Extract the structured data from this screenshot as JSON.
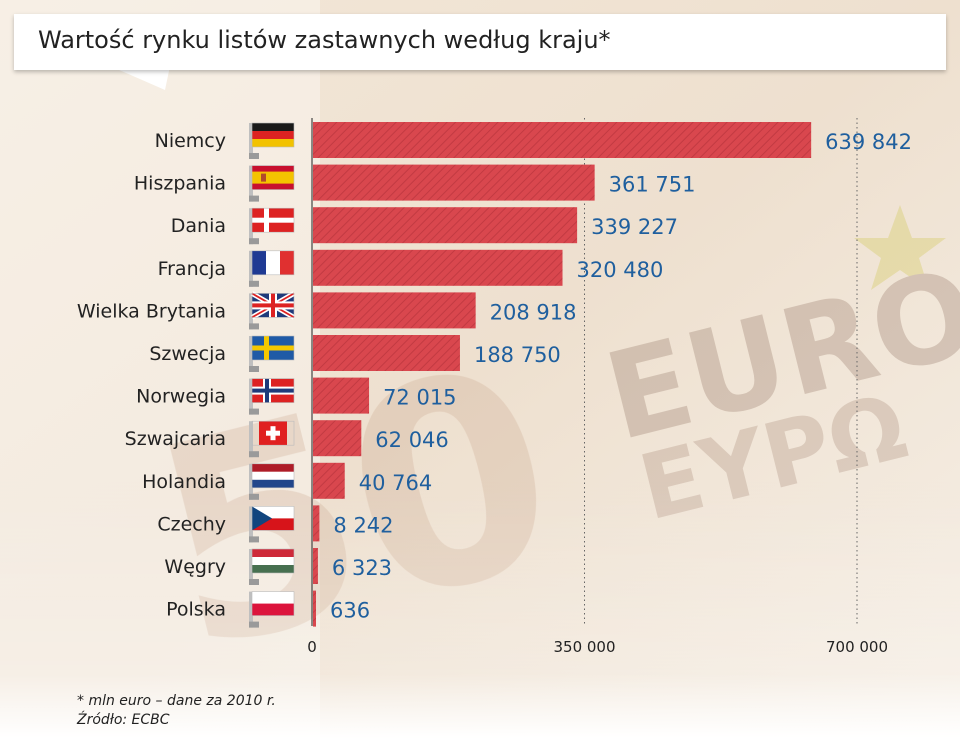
{
  "colors": {
    "bar": "#d9474e",
    "bar_stripe": "#c23a42",
    "value_label": "#1f5f9e",
    "category_label": "#222222"
  },
  "footnote": {
    "unit_note": "* mln euro – dane za 2010 r.",
    "source": "Źródło: ECBC"
  },
  "chart_data": {
    "type": "bar",
    "orientation": "horizontal",
    "title": "Wartość rynku listów zastawnych według kraju*",
    "categories": [
      "Niemcy",
      "Hiszpania",
      "Dania",
      "Francja",
      "Wielka Brytania",
      "Szwecja",
      "Norwegia",
      "Szwajcaria",
      "Holandia",
      "Czechy",
      "Węgry",
      "Polska"
    ],
    "values": [
      639842,
      361751,
      339227,
      320480,
      208918,
      188750,
      72015,
      62046,
      40764,
      8242,
      6323,
      636
    ],
    "value_labels": [
      "639 842",
      "361 751",
      "339 227",
      "320 480",
      "208 918",
      "188 750",
      "72 015",
      "62 046",
      "40 764",
      "8 242",
      "6 323",
      "636"
    ],
    "flags": [
      "flag-germany",
      "flag-spain",
      "flag-denmark",
      "flag-france",
      "flag-united-kingdom",
      "flag-sweden",
      "flag-norway",
      "flag-switzerland",
      "flag-netherlands",
      "flag-czechia",
      "flag-hungary",
      "flag-poland"
    ],
    "xlim": [
      0,
      700000
    ],
    "xticks": [
      0,
      350000,
      700000
    ],
    "xtick_labels": [
      "0",
      "350 000",
      "700 000"
    ],
    "xlabel": "",
    "ylabel": "",
    "grid": "vertical dotted at ticks"
  }
}
